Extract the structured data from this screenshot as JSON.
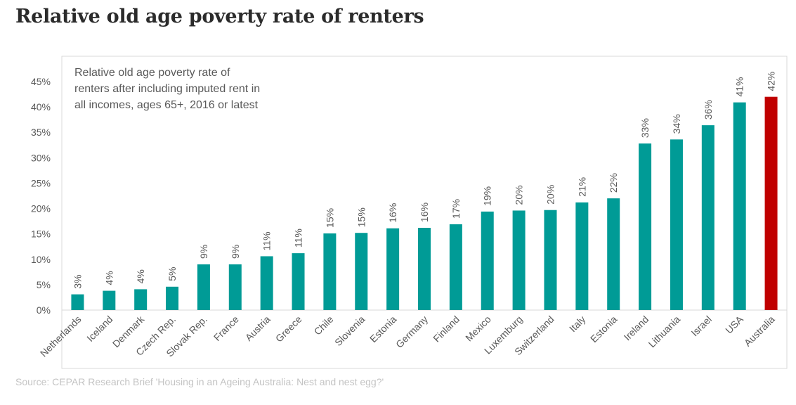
{
  "page": {
    "title": "Relative old age poverty rate of renters",
    "source": "Source: CEPAR Research Brief 'Housing in an Ageing Australia: Nest and nest egg?'"
  },
  "chart_data": {
    "type": "bar",
    "title": "Relative old age poverty rate of renters",
    "annotation_lines": [
      "Relative old age poverty rate of",
      "renters after including imputed rent in",
      "all incomes, ages 65+, 2016 or latest"
    ],
    "categories": [
      "Netherlands",
      "Iceland",
      "Denmark",
      "Czech Rep.",
      "Slovak Rep.",
      "France",
      "Austria",
      "Greece",
      "Chile",
      "Slovenia",
      "Estonia",
      "Germany",
      "Finland",
      "Mexico",
      "Luxemburg",
      "Switzerland",
      "Italy",
      "Estonia",
      "Ireland",
      "Lithuania",
      "Israel",
      "USA",
      "Australia"
    ],
    "values": [
      3.1,
      3.8,
      4.1,
      4.6,
      9.0,
      9.0,
      10.6,
      11.2,
      15.1,
      15.2,
      16.1,
      16.2,
      16.9,
      19.4,
      19.6,
      19.7,
      21.2,
      22.0,
      32.8,
      33.6,
      36.4,
      40.9,
      42.0
    ],
    "data_labels": [
      "3%",
      "4%",
      "4%",
      "5%",
      "9%",
      "9%",
      "11%",
      "11%",
      "15%",
      "15%",
      "16%",
      "16%",
      "17%",
      "19%",
      "20%",
      "20%",
      "21%",
      "22%",
      "33%",
      "34%",
      "36%",
      "41%",
      "42%"
    ],
    "colors": [
      "#009b96",
      "#009b96",
      "#009b96",
      "#009b96",
      "#009b96",
      "#009b96",
      "#009b96",
      "#009b96",
      "#009b96",
      "#009b96",
      "#009b96",
      "#009b96",
      "#009b96",
      "#009b96",
      "#009b96",
      "#009b96",
      "#009b96",
      "#009b96",
      "#009b96",
      "#009b96",
      "#009b96",
      "#009b96",
      "#c00000"
    ],
    "ylim": [
      0,
      45
    ],
    "yticks": [
      0,
      5,
      10,
      15,
      20,
      25,
      30,
      35,
      40,
      45
    ],
    "ytick_labels": [
      "0%",
      "5%",
      "10%",
      "15%",
      "20%",
      "25%",
      "30%",
      "35%",
      "40%",
      "45%"
    ],
    "xlabel": "",
    "ylabel": "",
    "grid": false,
    "legend": "none"
  }
}
